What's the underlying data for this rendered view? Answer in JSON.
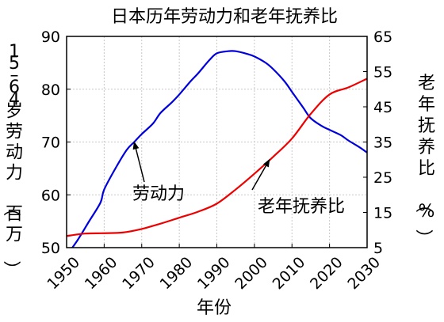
{
  "chart_data": {
    "type": "line",
    "title": "日本历年劳动力和老年抚养比",
    "xlabel": "年份",
    "ylabel_left": "15–64岁劳动力（百万）",
    "ylabel_right": "老年抚养比（%）",
    "xlim": [
      1950,
      2030
    ],
    "ylim_left": [
      50,
      90
    ],
    "ylim_right": [
      5,
      65
    ],
    "x_ticks": [
      "1950",
      "1960",
      "1970",
      "1980",
      "1990",
      "2000",
      "2010",
      "2020",
      "2030"
    ],
    "y_ticks_left": [
      "50",
      "60",
      "70",
      "80",
      "90"
    ],
    "y_ticks_right": [
      "5",
      "15",
      "25",
      "35",
      "45",
      "55",
      "65"
    ],
    "grid": true,
    "series": [
      {
        "name": "劳动力",
        "axis": "left",
        "color": "#0000dd",
        "x": [
          1950,
          1953,
          1956,
          1959,
          1960,
          1963,
          1966,
          1968,
          1970,
          1973,
          1975,
          1978,
          1980,
          1983,
          1985,
          1988,
          1990,
          1993,
          1995,
          1998,
          2000,
          2003,
          2005,
          2008,
          2010,
          2013,
          2015,
          2018,
          2020,
          2023,
          2025,
          2028,
          2030
        ],
        "values": [
          48.5,
          51.5,
          55.0,
          58.5,
          61.0,
          65.0,
          68.5,
          70.0,
          71.5,
          73.5,
          75.5,
          77.5,
          79.0,
          81.5,
          83.0,
          85.5,
          86.8,
          87.2,
          87.2,
          86.7,
          86.2,
          85.0,
          83.8,
          81.5,
          79.5,
          76.5,
          74.5,
          73.0,
          72.3,
          71.3,
          70.3,
          69.0,
          68.0
        ]
      },
      {
        "name": "老年抚养比",
        "axis": "right",
        "color": "#ee0000",
        "x": [
          1950,
          1955,
          1960,
          1965,
          1970,
          1975,
          1980,
          1985,
          1990,
          1995,
          2000,
          2005,
          2010,
          2015,
          2020,
          2025,
          2030
        ],
        "values": [
          8.3,
          9.0,
          9.1,
          9.3,
          10.3,
          11.8,
          13.5,
          15.2,
          17.5,
          21.5,
          26.0,
          30.8,
          36.0,
          43.0,
          48.5,
          50.5,
          53.0
        ]
      }
    ],
    "annotations": [
      {
        "text": "劳动力",
        "series": 0,
        "arrow_to_x": 1968,
        "arrow_to_y": 70.0
      },
      {
        "text": "老年抚养比",
        "series": 1,
        "arrow_to_x": 2004,
        "arrow_to_y": 30.0
      }
    ]
  }
}
